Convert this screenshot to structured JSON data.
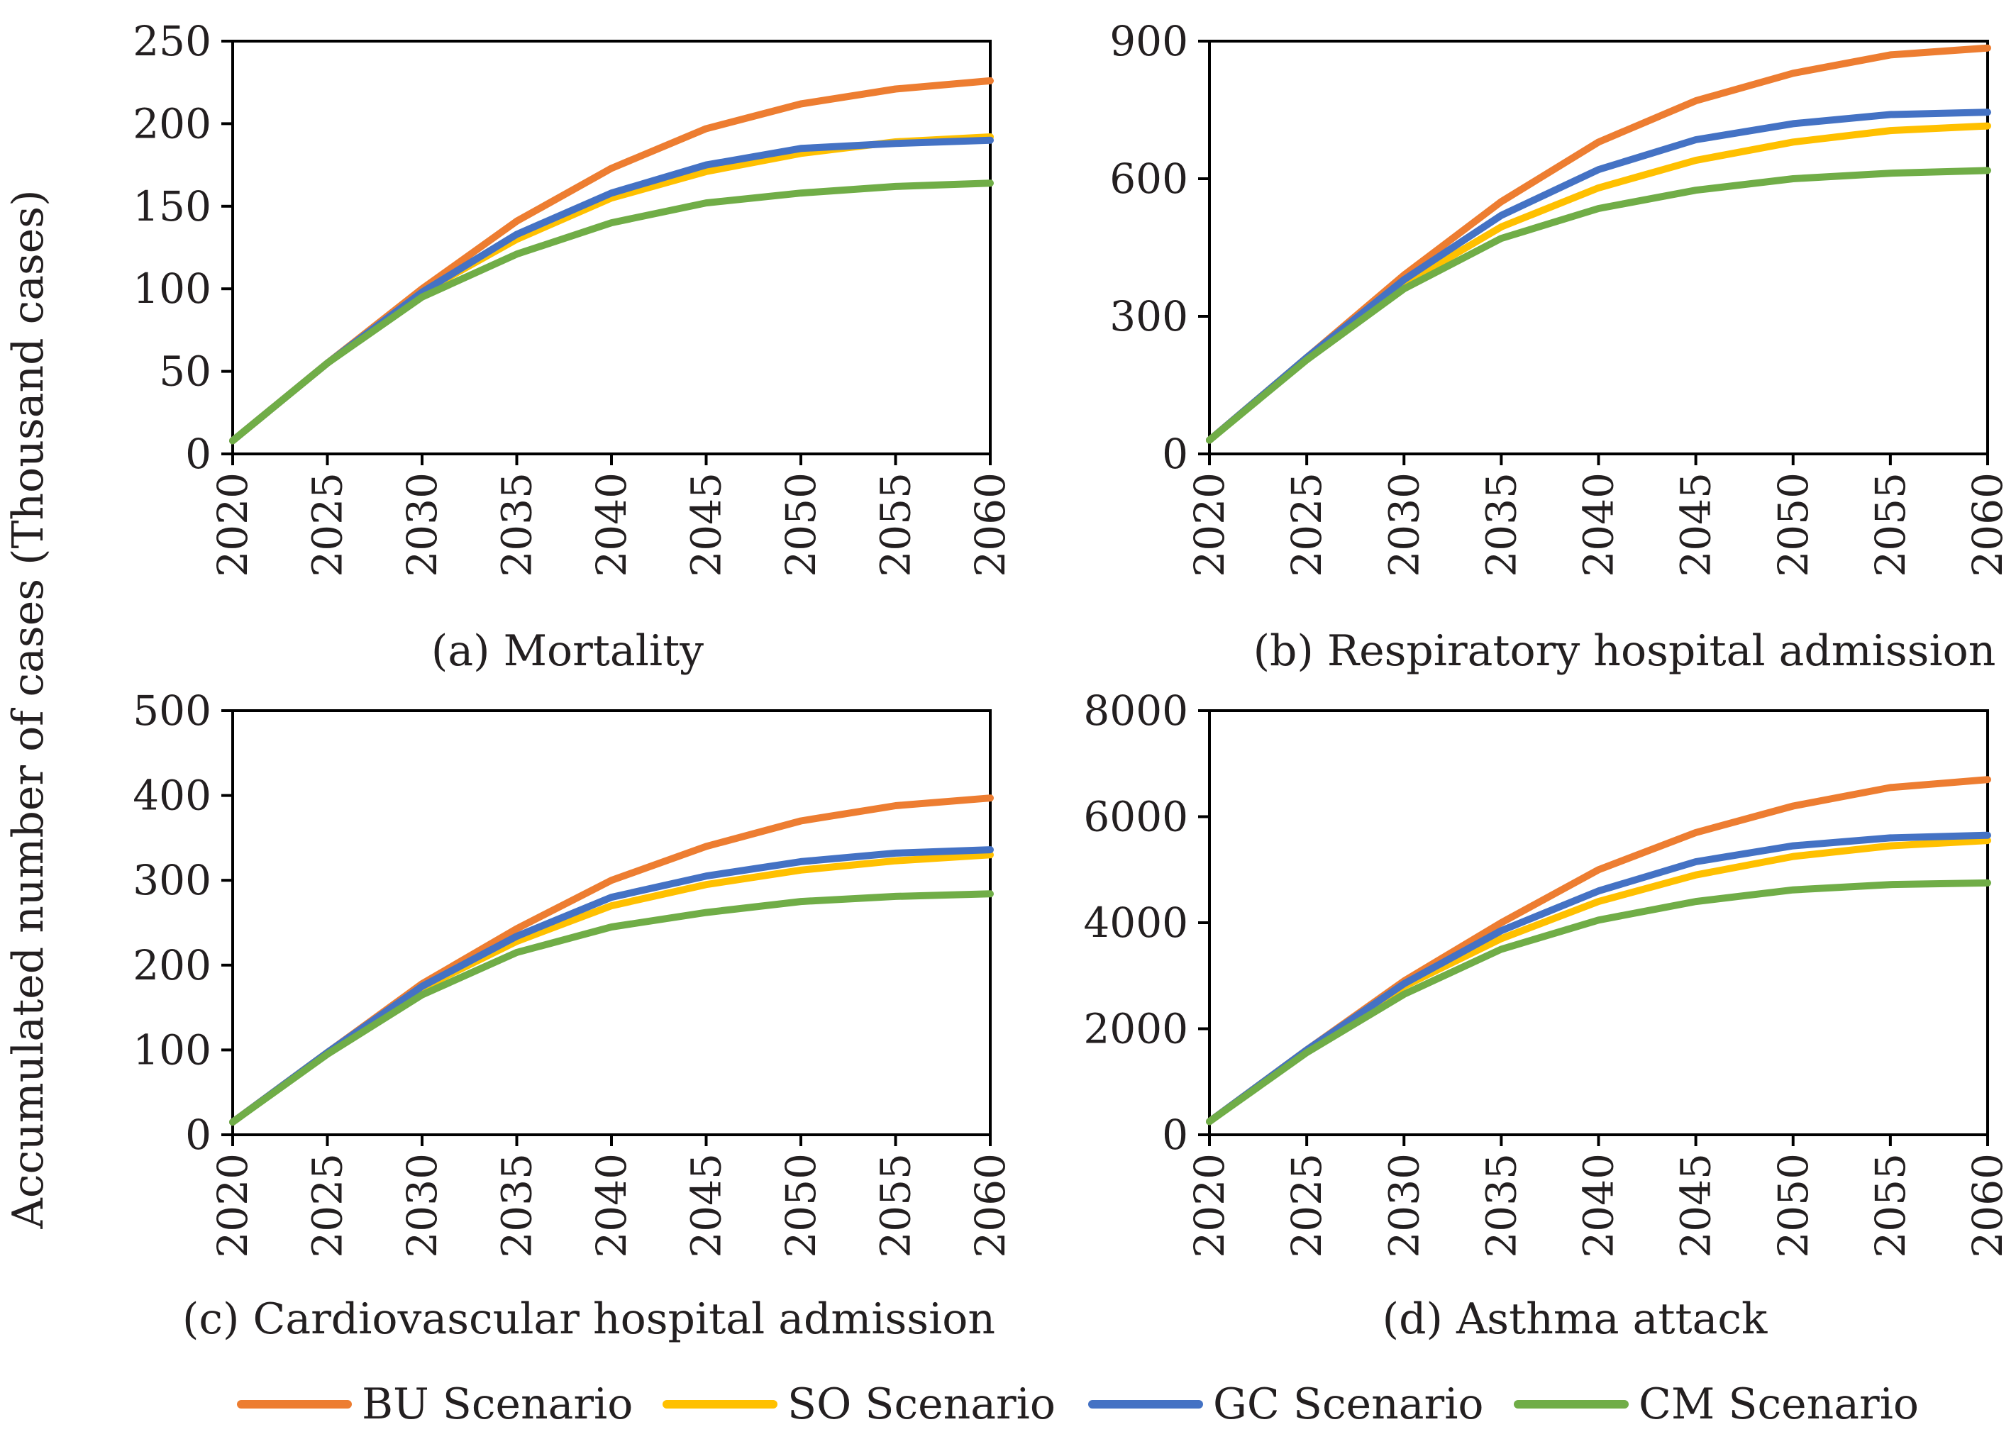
{
  "figure": {
    "ylabel": "Accumulated number of cases (Thousand cases)",
    "legend": [
      {
        "name": "BU Scenario",
        "color": "#ed7d31"
      },
      {
        "name": "SO Scenario",
        "color": "#ffc000"
      },
      {
        "name": "GC Scenario",
        "color": "#4472c4"
      },
      {
        "name": "CM Scenario",
        "color": "#70ad47"
      }
    ]
  },
  "chart_data": [
    {
      "type": "line",
      "title": "(a) Mortality",
      "xlabel": "",
      "ylabel": "Accumulated number of cases (Thousand cases)",
      "x": [
        2020,
        2025,
        2030,
        2035,
        2040,
        2045,
        2050,
        2055,
        2060
      ],
      "xticks": [
        "2020",
        "2025",
        "2030",
        "2035",
        "2040",
        "2045",
        "2050",
        "2055",
        "2060"
      ],
      "xlim": [
        2020,
        2060
      ],
      "yticks": [
        "0",
        "50",
        "100",
        "150",
        "200",
        "250"
      ],
      "ylim": [
        0,
        250
      ],
      "series": [
        {
          "name": "BU Scenario",
          "color": "#ed7d31",
          "values": [
            8,
            55,
            100,
            141,
            173,
            197,
            212,
            221,
            226
          ]
        },
        {
          "name": "SO Scenario",
          "color": "#ffc000",
          "values": [
            8,
            55,
            98,
            130,
            155,
            171,
            182,
            189,
            192
          ]
        },
        {
          "name": "GC Scenario",
          "color": "#4472c4",
          "values": [
            8,
            55,
            98,
            133,
            158,
            175,
            185,
            188,
            190
          ]
        },
        {
          "name": "CM Scenario",
          "color": "#70ad47",
          "values": [
            8,
            55,
            95,
            121,
            140,
            152,
            158,
            162,
            164
          ]
        }
      ]
    },
    {
      "type": "line",
      "title": "(b) Respiratory hospital admission",
      "xlabel": "",
      "ylabel": "",
      "x": [
        2020,
        2025,
        2030,
        2035,
        2040,
        2045,
        2050,
        2055,
        2060
      ],
      "xticks": [
        "2020",
        "2025",
        "2030",
        "2035",
        "2040",
        "2045",
        "2050",
        "2055",
        "2060"
      ],
      "xlim": [
        2020,
        2060
      ],
      "yticks": [
        "0",
        "300",
        "600",
        "900"
      ],
      "ylim": [
        0,
        900
      ],
      "series": [
        {
          "name": "BU Scenario",
          "color": "#ed7d31",
          "values": [
            30,
            210,
            390,
            550,
            680,
            770,
            830,
            870,
            885
          ]
        },
        {
          "name": "SO Scenario",
          "color": "#ffc000",
          "values": [
            30,
            210,
            370,
            495,
            580,
            640,
            680,
            705,
            715
          ]
        },
        {
          "name": "GC Scenario",
          "color": "#4472c4",
          "values": [
            30,
            210,
            380,
            520,
            620,
            685,
            720,
            740,
            745
          ]
        },
        {
          "name": "CM Scenario",
          "color": "#70ad47",
          "values": [
            30,
            205,
            360,
            470,
            535,
            575,
            600,
            612,
            618
          ]
        }
      ]
    },
    {
      "type": "line",
      "title": "(c) Cardiovascular hospital admission",
      "xlabel": "",
      "ylabel": "Accumulated number of cases (Thousand cases)",
      "x": [
        2020,
        2025,
        2030,
        2035,
        2040,
        2045,
        2050,
        2055,
        2060
      ],
      "xticks": [
        "2020",
        "2025",
        "2030",
        "2035",
        "2040",
        "2045",
        "2050",
        "2055",
        "2060"
      ],
      "xlim": [
        2020,
        2060
      ],
      "yticks": [
        "0",
        "100",
        "200",
        "300",
        "400",
        "500"
      ],
      "ylim": [
        0,
        500
      ],
      "series": [
        {
          "name": "BU Scenario",
          "color": "#ed7d31",
          "values": [
            15,
            97,
            178,
            243,
            300,
            340,
            370,
            388,
            397
          ]
        },
        {
          "name": "SO Scenario",
          "color": "#ffc000",
          "values": [
            15,
            97,
            173,
            228,
            270,
            295,
            312,
            323,
            330
          ]
        },
        {
          "name": "GC Scenario",
          "color": "#4472c4",
          "values": [
            15,
            97,
            175,
            234,
            280,
            305,
            322,
            332,
            336
          ]
        },
        {
          "name": "CM Scenario",
          "color": "#70ad47",
          "values": [
            15,
            95,
            165,
            215,
            245,
            262,
            275,
            281,
            284
          ]
        }
      ]
    },
    {
      "type": "line",
      "title": "(d) Asthma attack",
      "xlabel": "",
      "ylabel": "",
      "x": [
        2020,
        2025,
        2030,
        2035,
        2040,
        2045,
        2050,
        2055,
        2060
      ],
      "xticks": [
        "2020",
        "2025",
        "2030",
        "2035",
        "2040",
        "2045",
        "2050",
        "2055",
        "2060"
      ],
      "xlim": [
        2020,
        2060
      ],
      "yticks": [
        "0",
        "2000",
        "4000",
        "6000",
        "8000"
      ],
      "ylim": [
        0,
        8000
      ],
      "series": [
        {
          "name": "BU Scenario",
          "color": "#ed7d31",
          "values": [
            250,
            1600,
            2900,
            4000,
            5000,
            5700,
            6200,
            6550,
            6700
          ]
        },
        {
          "name": "SO Scenario",
          "color": "#ffc000",
          "values": [
            250,
            1600,
            2800,
            3700,
            4400,
            4900,
            5250,
            5450,
            5550
          ]
        },
        {
          "name": "GC Scenario",
          "color": "#4472c4",
          "values": [
            250,
            1600,
            2850,
            3850,
            4600,
            5150,
            5450,
            5600,
            5650
          ]
        },
        {
          "name": "CM Scenario",
          "color": "#70ad47",
          "values": [
            250,
            1550,
            2650,
            3500,
            4050,
            4400,
            4620,
            4720,
            4750
          ]
        }
      ]
    }
  ]
}
